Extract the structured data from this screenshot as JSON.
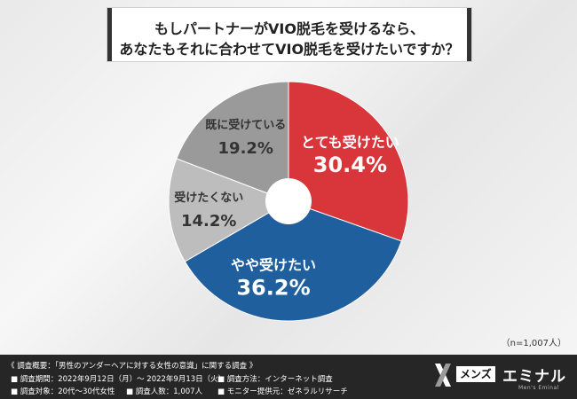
{
  "title": {
    "line1": "もしパートナーがVIO脱毛を受けるなら、",
    "line2": "あなたもそれに合わせてVIO脱毛を受けたいですか？"
  },
  "chart_data": {
    "type": "pie",
    "donut": true,
    "slices": [
      {
        "label": "とても受けたい",
        "value": 30.4,
        "display": "30.4%",
        "color": "#d9363b",
        "label_color": "#ffffff"
      },
      {
        "label": "やや受けたい",
        "value": 36.2,
        "display": "36.2%",
        "color": "#1f5f9e",
        "label_color": "#ffffff"
      },
      {
        "label": "受けたくない",
        "value": 14.2,
        "display": "14.2%",
        "color": "#bdbdbd",
        "label_color": "#333333"
      },
      {
        "label": "既に受けている",
        "value": 19.2,
        "display": "19.2%",
        "color": "#9a9a9a",
        "label_color": "#333333"
      }
    ]
  },
  "note": "（n=1,007人）",
  "footer": {
    "survey_title": "《 調査概要：「男性のアンダーヘアに対する女性の意識」に関する調査 》",
    "period": "■ 調査期間：2022年9月12日（月）～ 2022年9月13日（火）",
    "method": "■ 調査方法：インターネット調査",
    "target": "■ 調査対象：20代～30代女性",
    "count": "■ 調査人数：1,007人",
    "provider": "■ モニター提供元：ゼネラルリサーチ"
  },
  "brand": {
    "box": "メンズ",
    "name": "エミナル",
    "sub": "Men's Eminal"
  }
}
